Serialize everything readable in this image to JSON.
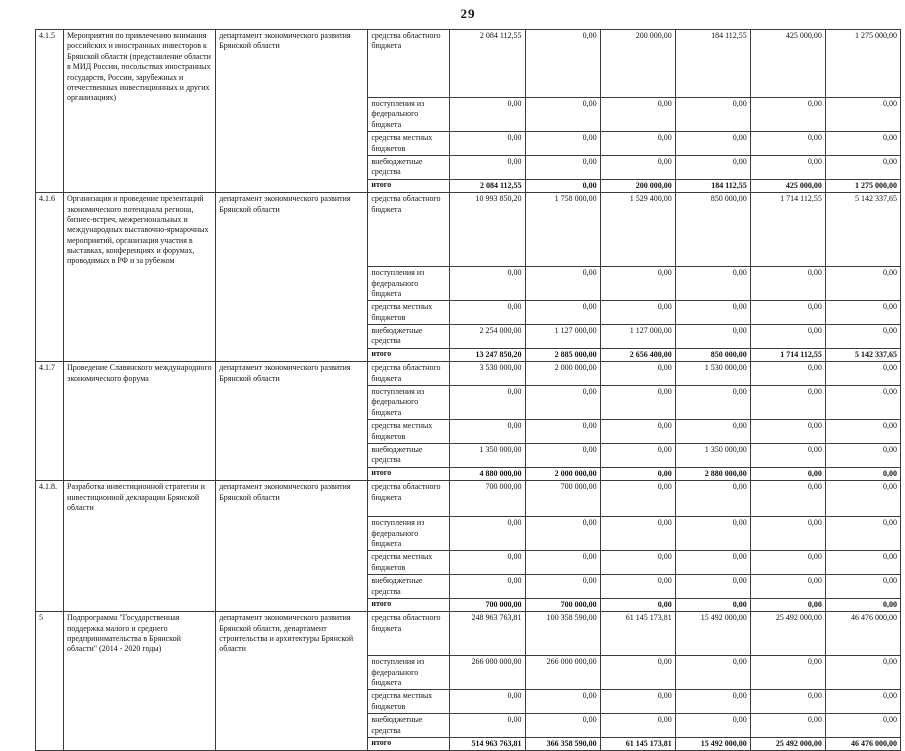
{
  "page_number": "29",
  "table": {
    "blocks": [
      {
        "num": "4.1.5",
        "name": "Мероприятия по привлечению внимания российских и иностранных инвесторов к Брянской области (представление области в МИД России, посольствах иностранных государств, России, зарубежных и отечественных инвестиционных и других организациях)",
        "department": "департамент экономического развития Брянской области",
        "funding": [
          {
            "source": "средства областного бюджета",
            "values": [
              "2 084 112,55",
              "0,00",
              "200 000,00",
              "184 112,55",
              "425 000,00",
              "1 275 000,00"
            ],
            "total": false
          },
          {
            "source": "поступления из федерального бюджета",
            "values": [
              "0,00",
              "0,00",
              "0,00",
              "0,00",
              "0,00",
              "0,00"
            ],
            "total": false
          },
          {
            "source": "средства местных бюджетов",
            "values": [
              "0,00",
              "0,00",
              "0,00",
              "0,00",
              "0,00",
              "0,00"
            ],
            "total": false
          },
          {
            "source": "внебюджетные средства",
            "values": [
              "0,00",
              "0,00",
              "0,00",
              "0,00",
              "0,00",
              "0,00"
            ],
            "total": false
          },
          {
            "source": "итого",
            "values": [
              "2 084 112,55",
              "0,00",
              "200 000,00",
              "184 112,55",
              "425 000,00",
              "1 275 000,00"
            ],
            "total": true
          }
        ]
      },
      {
        "num": "4.1.6",
        "name": "Организация и проведение презентаций экономического потенциала региона, бизнес-встреч, межрегиональных и международных выставочно-ярмарочных мероприятий, организация участия в выставках, конференциях и форумах, проводимых в РФ и за рубежом",
        "department": "департамент экономического развития Брянской области",
        "funding": [
          {
            "source": "средства областного бюджета",
            "values": [
              "10 993 850,20",
              "1 758 000,00",
              "1 529 400,00",
              "850 000,00",
              "1 714 112,55",
              "5 142 337,65"
            ],
            "total": false
          },
          {
            "source": "поступления из федерального бюджета",
            "values": [
              "0,00",
              "0,00",
              "0,00",
              "0,00",
              "0,00",
              "0,00"
            ],
            "total": false
          },
          {
            "source": "средства местных бюджетов",
            "values": [
              "0,00",
              "0,00",
              "0,00",
              "0,00",
              "0,00",
              "0,00"
            ],
            "total": false
          },
          {
            "source": "внебюджетные средства",
            "values": [
              "2 254 000,00",
              "1 127 000,00",
              "1 127 000,00",
              "0,00",
              "0,00",
              "0,00"
            ],
            "total": false
          },
          {
            "source": "итого",
            "values": [
              "13 247 850,20",
              "2 885 000,00",
              "2 656 400,00",
              "850 000,00",
              "1 714 112,55",
              "5 142 337,65"
            ],
            "total": true
          }
        ]
      },
      {
        "num": "4.1.7",
        "name": "Проведение Славянского международного экономического форума",
        "department": "департамент экономического развития Брянской области",
        "funding": [
          {
            "source": "средства областного бюджета",
            "values": [
              "3 530 000,00",
              "2 000 000,00",
              "0,00",
              "1 530 000,00",
              "0,00",
              "0,00"
            ],
            "total": false
          },
          {
            "source": "поступления из федерального бюджета",
            "values": [
              "0,00",
              "0,00",
              "0,00",
              "0,00",
              "0,00",
              "0,00"
            ],
            "total": false
          },
          {
            "source": "средства местных бюджетов",
            "values": [
              "0,00",
              "0,00",
              "0,00",
              "0,00",
              "0,00",
              "0,00"
            ],
            "total": false
          },
          {
            "source": "внебюджетные средства",
            "values": [
              "1 350 000,00",
              "0,00",
              "0,00",
              "1 350 000,00",
              "0,00",
              "0,00"
            ],
            "total": false
          },
          {
            "source": "итого",
            "values": [
              "4 880 000,00",
              "2 000 000,00",
              "0,00",
              "2 880 000,00",
              "0,00",
              "0,00"
            ],
            "total": true
          }
        ]
      },
      {
        "num": "4.1.8.",
        "name": "Разработка инвестиционной стратегии и инвестиционной декларации Брянской области",
        "department": "департамент экономического развития Брянской области",
        "funding": [
          {
            "source": "средства областного бюджета",
            "values": [
              "700 000,00",
              "700 000,00",
              "0,00",
              "0,00",
              "0,00",
              "0,00"
            ],
            "total": false
          },
          {
            "source": "поступления из федерального бюджета",
            "values": [
              "0,00",
              "0,00",
              "0,00",
              "0,00",
              "0,00",
              "0,00"
            ],
            "total": false
          },
          {
            "source": "средства местных бюджетов",
            "values": [
              "0,00",
              "0,00",
              "0,00",
              "0,00",
              "0,00",
              "0,00"
            ],
            "total": false
          },
          {
            "source": "внебюджетные средства",
            "values": [
              "0,00",
              "0,00",
              "0,00",
              "0,00",
              "0,00",
              "0,00"
            ],
            "total": false
          },
          {
            "source": "итого",
            "values": [
              "700 000,00",
              "700 000,00",
              "0,00",
              "0,00",
              "0,00",
              "0,00"
            ],
            "total": true
          }
        ]
      },
      {
        "num": "5",
        "name": "Подпрограмма \"Государственная поддержка малого и среднего предпринимательства в Брянской области\" (2014 - 2020 годы)",
        "department": "департамент экономического развития Брянской области, департамент строительства и архитектуры Брянской области",
        "funding": [
          {
            "source": "средства областного бюджета",
            "values": [
              "248 963 763,81",
              "100 358 590,00",
              "61 145 173,81",
              "15 492 000,00",
              "25 492 000,00",
              "46 476 000,00"
            ],
            "total": false
          },
          {
            "source": "поступления из федерального бюджета",
            "values": [
              "266 000 000,00",
              "266 000 000,00",
              "0,00",
              "0,00",
              "0,00",
              "0,00"
            ],
            "total": false
          },
          {
            "source": "средства местных бюджетов",
            "values": [
              "0,00",
              "0,00",
              "0,00",
              "0,00",
              "0,00",
              "0,00"
            ],
            "total": false
          },
          {
            "source": "внебюджетные средства",
            "values": [
              "0,00",
              "0,00",
              "0,00",
              "0,00",
              "0,00",
              "0,00"
            ],
            "total": false
          },
          {
            "source": "итого",
            "values": [
              "514 963 763,81",
              "366 358 590,00",
              "61 145 173,81",
              "15 492 000,00",
              "25 492 000,00",
              "46 476 000,00"
            ],
            "total": true
          }
        ]
      }
    ]
  }
}
